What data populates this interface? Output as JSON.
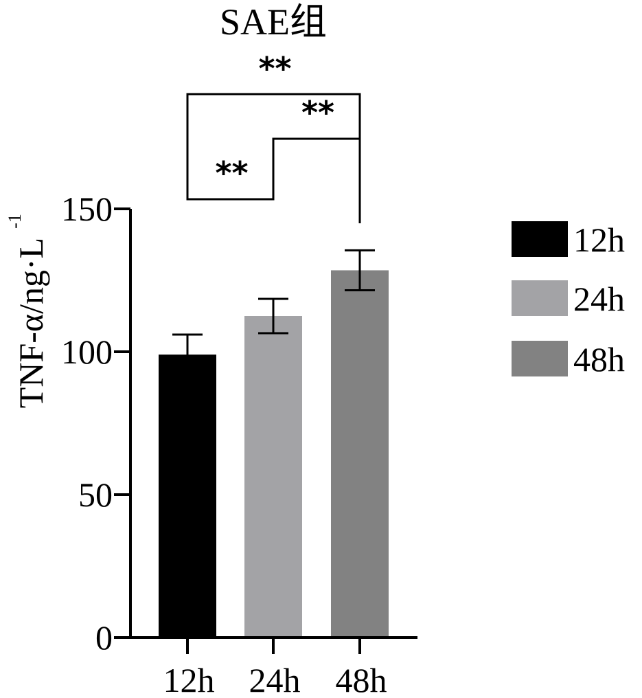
{
  "chart_data": {
    "type": "bar",
    "title": "SAE组",
    "ylabel": "TNF-α/ng·L",
    "ylabel_superscript": "-1",
    "xlabel": "",
    "ylim": [
      0,
      150
    ],
    "yticks": [
      0,
      50,
      100,
      150
    ],
    "categories": [
      "12h",
      "24h",
      "48h"
    ],
    "values": [
      99,
      112.5,
      128.5
    ],
    "errors": [
      7,
      6,
      7
    ],
    "colors": [
      "#000000",
      "#a3a3a6",
      "#828282"
    ],
    "legend": {
      "position": "right",
      "entries": [
        "12h",
        "24h",
        "48h"
      ]
    },
    "significance": [
      {
        "from": 0,
        "to": 1,
        "label": "**"
      },
      {
        "from": 1,
        "to": 2,
        "label": "**"
      },
      {
        "from": 0,
        "to": 2,
        "label": "**"
      }
    ]
  }
}
